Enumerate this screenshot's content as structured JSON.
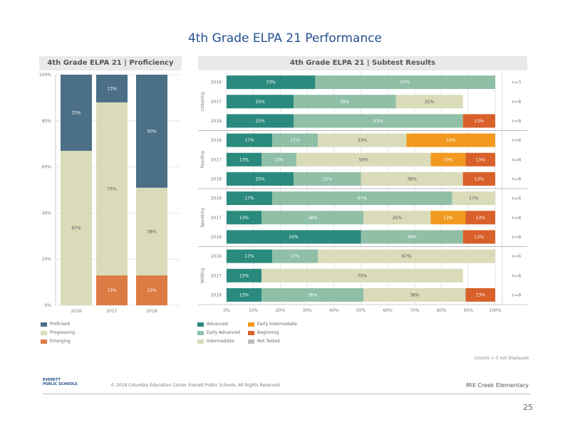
{
  "title": "4th Grade ELPA 21 Performance",
  "colors": {
    "grid": "#e6e6e6",
    "panel_bg": "#e9e9e9",
    "title": "#24508f",
    "level_colors": [
      "#2a8a7e",
      "#8fbfa6",
      "#d9dbb9",
      "#f29a1f",
      "#d9602a",
      "#bdbdbd"
    ],
    "prof_colors": [
      "#4a6f86",
      "#d9dbb9",
      "#dd7b45"
    ]
  },
  "left_panel": {
    "header": "4th Grade ELPA 21 | Proficiency"
  },
  "right_panel": {
    "header": "4th Grade ELPA 21 | Subtest Results"
  },
  "chart_data": [
    {
      "type": "bar",
      "stacked": true,
      "orientation": "vertical",
      "title": "4th Grade ELPA 21 | Proficiency",
      "categories": [
        "2016",
        "2017",
        "2018"
      ],
      "ylim": [
        0,
        100
      ],
      "yticks": [
        "0%",
        "20%",
        "40%",
        "60%",
        "80%",
        "100%"
      ],
      "series": [
        {
          "name": "Emerging",
          "values": [
            0,
            13,
            13
          ],
          "labels": [
            "",
            "13%",
            "13%"
          ]
        },
        {
          "name": "Progressing",
          "values": [
            67,
            75,
            38
          ],
          "labels": [
            "67%",
            "75%",
            "38%"
          ]
        },
        {
          "name": "Proficient",
          "values": [
            33,
            13,
            50
          ],
          "labels": [
            "33%",
            "13%",
            "50%"
          ]
        }
      ],
      "legend": [
        "Proficient",
        "Progressing",
        "Emerging"
      ],
      "legend_position": "bottom"
    },
    {
      "type": "bar",
      "stacked": true,
      "orientation": "horizontal",
      "title": "4th Grade ELPA 21 | Subtest Results",
      "xlim": [
        0,
        100
      ],
      "xticks": [
        "0%",
        "10%",
        "20%",
        "30%",
        "40%",
        "50%",
        "60%",
        "70%",
        "80%",
        "90%",
        "100%"
      ],
      "level_names": [
        "Advanced",
        "Early Advanced",
        "Intermediate",
        "Early Intermediate",
        "Beginning",
        "Not Tested"
      ],
      "groups": [
        {
          "name": "Listening",
          "rows": [
            {
              "year": "2016",
              "n": "n=3",
              "segments": [
                33,
                67,
                0,
                0,
                0
              ],
              "labels": [
                "33%",
                "67%",
                "",
                "",
                ""
              ]
            },
            {
              "year": "2017",
              "n": "n=8",
              "segments": [
                25,
                38,
                25,
                0,
                0
              ],
              "labels": [
                "25%",
                "38%",
                "25%",
                "",
                ""
              ]
            },
            {
              "year": "2018",
              "n": "n=8",
              "segments": [
                25,
                63,
                0,
                0,
                13
              ],
              "labels": [
                "25%",
                "63%",
                "",
                "",
                "13%"
              ]
            }
          ]
        },
        {
          "name": "Reading",
          "rows": [
            {
              "year": "2016",
              "n": "n=6",
              "segments": [
                17,
                17,
                33,
                33,
                0
              ],
              "labels": [
                "17%",
                "17%",
                "33%",
                "33%",
                ""
              ]
            },
            {
              "year": "2017",
              "n": "n=8",
              "segments": [
                13,
                13,
                50,
                13,
                13
              ],
              "labels": [
                "13%",
                "13%",
                "50%",
                "13%",
                "13%"
              ]
            },
            {
              "year": "2018",
              "n": "n=8",
              "segments": [
                25,
                25,
                38,
                0,
                13
              ],
              "labels": [
                "25%",
                "25%",
                "38%",
                "",
                "13%"
              ]
            }
          ]
        },
        {
          "name": "Speaking",
          "rows": [
            {
              "year": "2016",
              "n": "n=6",
              "segments": [
                17,
                67,
                17,
                0,
                0
              ],
              "labels": [
                "17%",
                "67%",
                "17%",
                "",
                ""
              ]
            },
            {
              "year": "2017",
              "n": "n=8",
              "segments": [
                13,
                38,
                25,
                13,
                13
              ],
              "labels": [
                "13%",
                "38%",
                "25%",
                "13%",
                "13%"
              ]
            },
            {
              "year": "2018",
              "n": "n=8",
              "segments": [
                50,
                38,
                0,
                0,
                13
              ],
              "labels": [
                "50%",
                "38%",
                "",
                "",
                "13%"
              ]
            }
          ]
        },
        {
          "name": "Writing",
          "rows": [
            {
              "year": "2016",
              "n": "n=6",
              "segments": [
                17,
                17,
                67,
                0,
                0
              ],
              "labels": [
                "17%",
                "17%",
                "67%",
                "",
                ""
              ]
            },
            {
              "year": "2017",
              "n": "n=8",
              "segments": [
                13,
                0,
                75,
                0,
                0
              ],
              "labels": [
                "13%",
                "",
                "75%",
                "",
                ""
              ]
            },
            {
              "year": "2018",
              "n": "n=8",
              "segments": [
                13,
                38,
                38,
                0,
                13
              ],
              "labels": [
                "13%",
                "38%",
                "38%",
                "",
                "13%"
              ]
            }
          ]
        }
      ],
      "legend": [
        "Advanced",
        "Early Advanced",
        "Intermediate",
        "Early Intermediate",
        "Beginning",
        "Not Tested"
      ],
      "legend_position": "bottom"
    }
  ],
  "notes": {
    "small_counts": "Counts < 5 not displayed"
  },
  "footer": {
    "logo_line1": "EVERETT",
    "logo_line2": "PUBLIC SCHOOLS",
    "copyright": "© 2018 Columbia Education Center Everett Public Schools. All Rights Reserved.",
    "school": "Mill Creek Elementary",
    "page": "25"
  }
}
